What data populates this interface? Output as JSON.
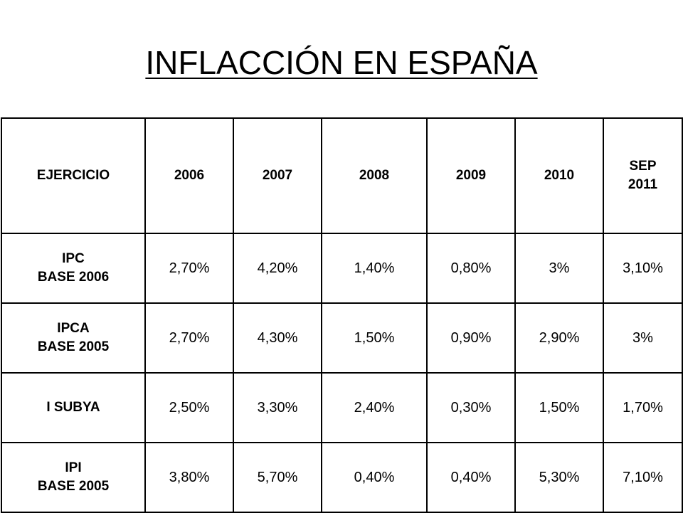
{
  "title": "INFLACCIÓN EN ESPAÑA",
  "table": {
    "header": {
      "first": "EJERCICIO",
      "years": [
        "2006",
        "2007",
        "2008",
        "2009",
        "2010"
      ],
      "last_line1": "SEP",
      "last_line2": "2011"
    },
    "rows": [
      {
        "label_line1": "IPC",
        "label_line2": "BASE 2006",
        "values": [
          "2,70%",
          "4,20%",
          "1,40%",
          "0,80%",
          "3%",
          "3,10%"
        ]
      },
      {
        "label_line1": "IPCA",
        "label_line2": "BASE 2005",
        "values": [
          "2,70%",
          "4,30%",
          "1,50%",
          "0,90%",
          "2,90%",
          "3%"
        ]
      },
      {
        "label_line1": "I SUBYA",
        "label_line2": "",
        "values": [
          "2,50%",
          "3,30%",
          "2,40%",
          "0,30%",
          "1,50%",
          "1,70%"
        ]
      },
      {
        "label_line1": "IPI",
        "label_line2": "BASE 2005",
        "values": [
          "3,80%",
          "5,70%",
          "0,40%",
          "0,40%",
          "5,30%",
          "7,10%"
        ]
      }
    ]
  }
}
